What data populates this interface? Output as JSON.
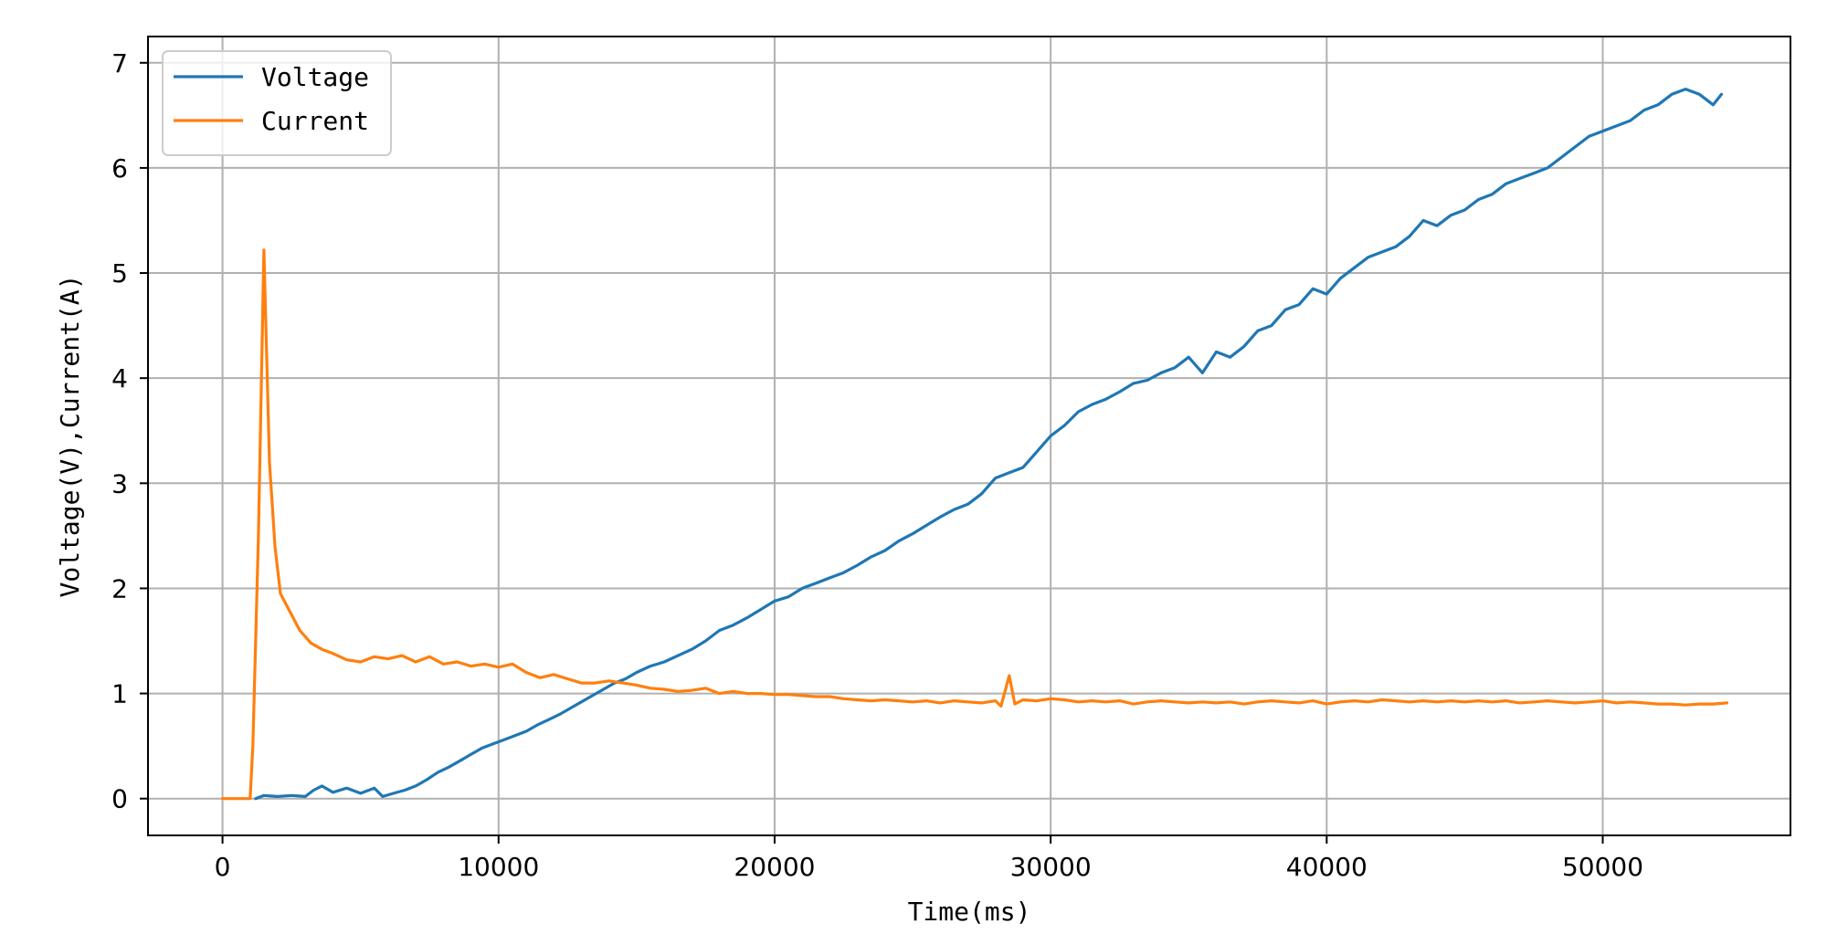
{
  "chart_data": {
    "type": "line",
    "xlabel": "Time(ms)",
    "ylabel": "Voltage(V),Current(A)",
    "xlim": [
      -2700,
      56800
    ],
    "ylim": [
      -0.35,
      7.25
    ],
    "xticks": [
      0,
      10000,
      20000,
      30000,
      40000,
      50000
    ],
    "yticks": [
      0,
      1,
      2,
      3,
      4,
      5,
      6,
      7
    ],
    "grid": true,
    "legend_position": "top-left",
    "series": [
      {
        "name": "Voltage",
        "color": "#1f77b4",
        "points": [
          [
            1200,
            0.0
          ],
          [
            1500,
            0.03
          ],
          [
            2000,
            0.02
          ],
          [
            2500,
            0.03
          ],
          [
            3000,
            0.02
          ],
          [
            3300,
            0.08
          ],
          [
            3600,
            0.12
          ],
          [
            4000,
            0.06
          ],
          [
            4500,
            0.1
          ],
          [
            5000,
            0.05
          ],
          [
            5500,
            0.1
          ],
          [
            5800,
            0.02
          ],
          [
            6200,
            0.05
          ],
          [
            6600,
            0.08
          ],
          [
            7000,
            0.12
          ],
          [
            7400,
            0.18
          ],
          [
            7800,
            0.25
          ],
          [
            8200,
            0.3
          ],
          [
            8600,
            0.36
          ],
          [
            9000,
            0.42
          ],
          [
            9400,
            0.48
          ],
          [
            9800,
            0.52
          ],
          [
            10200,
            0.56
          ],
          [
            10600,
            0.6
          ],
          [
            11000,
            0.64
          ],
          [
            11400,
            0.7
          ],
          [
            11800,
            0.75
          ],
          [
            12200,
            0.8
          ],
          [
            12600,
            0.86
          ],
          [
            13000,
            0.92
          ],
          [
            13400,
            0.98
          ],
          [
            13800,
            1.04
          ],
          [
            14200,
            1.1
          ],
          [
            14600,
            1.14
          ],
          [
            15000,
            1.2
          ],
          [
            15500,
            1.26
          ],
          [
            16000,
            1.3
          ],
          [
            16500,
            1.36
          ],
          [
            17000,
            1.42
          ],
          [
            17500,
            1.5
          ],
          [
            18000,
            1.6
          ],
          [
            18500,
            1.65
          ],
          [
            19000,
            1.72
          ],
          [
            19500,
            1.8
          ],
          [
            20000,
            1.88
          ],
          [
            20500,
            1.92
          ],
          [
            21000,
            2.0
          ],
          [
            21500,
            2.05
          ],
          [
            22000,
            2.1
          ],
          [
            22500,
            2.15
          ],
          [
            23000,
            2.22
          ],
          [
            23500,
            2.3
          ],
          [
            24000,
            2.36
          ],
          [
            24500,
            2.45
          ],
          [
            25000,
            2.52
          ],
          [
            25500,
            2.6
          ],
          [
            26000,
            2.68
          ],
          [
            26500,
            2.75
          ],
          [
            27000,
            2.8
          ],
          [
            27500,
            2.9
          ],
          [
            28000,
            3.05
          ],
          [
            28500,
            3.1
          ],
          [
            29000,
            3.15
          ],
          [
            29500,
            3.3
          ],
          [
            30000,
            3.45
          ],
          [
            30500,
            3.55
          ],
          [
            31000,
            3.68
          ],
          [
            31500,
            3.75
          ],
          [
            32000,
            3.8
          ],
          [
            32500,
            3.87
          ],
          [
            33000,
            3.95
          ],
          [
            33500,
            3.98
          ],
          [
            34000,
            4.05
          ],
          [
            34500,
            4.1
          ],
          [
            35000,
            4.2
          ],
          [
            35500,
            4.05
          ],
          [
            36000,
            4.25
          ],
          [
            36500,
            4.2
          ],
          [
            37000,
            4.3
          ],
          [
            37500,
            4.45
          ],
          [
            38000,
            4.5
          ],
          [
            38500,
            4.65
          ],
          [
            39000,
            4.7
          ],
          [
            39500,
            4.85
          ],
          [
            40000,
            4.8
          ],
          [
            40500,
            4.95
          ],
          [
            41000,
            5.05
          ],
          [
            41500,
            5.15
          ],
          [
            42000,
            5.2
          ],
          [
            42500,
            5.25
          ],
          [
            43000,
            5.35
          ],
          [
            43500,
            5.5
          ],
          [
            44000,
            5.45
          ],
          [
            44500,
            5.55
          ],
          [
            45000,
            5.6
          ],
          [
            45500,
            5.7
          ],
          [
            46000,
            5.75
          ],
          [
            46500,
            5.85
          ],
          [
            47000,
            5.9
          ],
          [
            47500,
            5.95
          ],
          [
            48000,
            6.0
          ],
          [
            48500,
            6.1
          ],
          [
            49000,
            6.2
          ],
          [
            49500,
            6.3
          ],
          [
            50000,
            6.35
          ],
          [
            50500,
            6.4
          ],
          [
            51000,
            6.45
          ],
          [
            51500,
            6.55
          ],
          [
            52000,
            6.6
          ],
          [
            52500,
            6.7
          ],
          [
            53000,
            6.75
          ],
          [
            53500,
            6.7
          ],
          [
            54000,
            6.6
          ],
          [
            54300,
            6.7
          ]
        ]
      },
      {
        "name": "Current",
        "color": "#ff7f0e",
        "points": [
          [
            0,
            0.0
          ],
          [
            1000,
            0.0
          ],
          [
            1100,
            0.5
          ],
          [
            1300,
            2.5
          ],
          [
            1500,
            5.22
          ],
          [
            1700,
            3.2
          ],
          [
            1900,
            2.4
          ],
          [
            2100,
            1.95
          ],
          [
            2400,
            1.8
          ],
          [
            2800,
            1.6
          ],
          [
            3200,
            1.48
          ],
          [
            3600,
            1.42
          ],
          [
            4000,
            1.38
          ],
          [
            4500,
            1.32
          ],
          [
            5000,
            1.3
          ],
          [
            5500,
            1.35
          ],
          [
            6000,
            1.33
          ],
          [
            6500,
            1.36
          ],
          [
            7000,
            1.3
          ],
          [
            7500,
            1.35
          ],
          [
            8000,
            1.28
          ],
          [
            8500,
            1.3
          ],
          [
            9000,
            1.26
          ],
          [
            9500,
            1.28
          ],
          [
            10000,
            1.25
          ],
          [
            10500,
            1.28
          ],
          [
            11000,
            1.2
          ],
          [
            11500,
            1.15
          ],
          [
            12000,
            1.18
          ],
          [
            12500,
            1.14
          ],
          [
            13000,
            1.1
          ],
          [
            13500,
            1.1
          ],
          [
            14000,
            1.12
          ],
          [
            14500,
            1.1
          ],
          [
            15000,
            1.08
          ],
          [
            15500,
            1.05
          ],
          [
            16000,
            1.04
          ],
          [
            16500,
            1.02
          ],
          [
            17000,
            1.03
          ],
          [
            17500,
            1.05
          ],
          [
            18000,
            1.0
          ],
          [
            18500,
            1.02
          ],
          [
            19000,
            1.0
          ],
          [
            19500,
            1.0
          ],
          [
            20000,
            0.99
          ],
          [
            20500,
            0.99
          ],
          [
            21000,
            0.98
          ],
          [
            21500,
            0.97
          ],
          [
            22000,
            0.97
          ],
          [
            22500,
            0.95
          ],
          [
            23000,
            0.94
          ],
          [
            23500,
            0.93
          ],
          [
            24000,
            0.94
          ],
          [
            24500,
            0.93
          ],
          [
            25000,
            0.92
          ],
          [
            25500,
            0.93
          ],
          [
            26000,
            0.91
          ],
          [
            26500,
            0.93
          ],
          [
            27000,
            0.92
          ],
          [
            27500,
            0.91
          ],
          [
            28000,
            0.93
          ],
          [
            28200,
            0.88
          ],
          [
            28500,
            1.17
          ],
          [
            28700,
            0.9
          ],
          [
            29000,
            0.94
          ],
          [
            29500,
            0.93
          ],
          [
            30000,
            0.95
          ],
          [
            30500,
            0.94
          ],
          [
            31000,
            0.92
          ],
          [
            31500,
            0.93
          ],
          [
            32000,
            0.92
          ],
          [
            32500,
            0.93
          ],
          [
            33000,
            0.9
          ],
          [
            33500,
            0.92
          ],
          [
            34000,
            0.93
          ],
          [
            34500,
            0.92
          ],
          [
            35000,
            0.91
          ],
          [
            35500,
            0.92
          ],
          [
            36000,
            0.91
          ],
          [
            36500,
            0.92
          ],
          [
            37000,
            0.9
          ],
          [
            37500,
            0.92
          ],
          [
            38000,
            0.93
          ],
          [
            38500,
            0.92
          ],
          [
            39000,
            0.91
          ],
          [
            39500,
            0.93
          ],
          [
            40000,
            0.9
          ],
          [
            40500,
            0.92
          ],
          [
            41000,
            0.93
          ],
          [
            41500,
            0.92
          ],
          [
            42000,
            0.94
          ],
          [
            42500,
            0.93
          ],
          [
            43000,
            0.92
          ],
          [
            43500,
            0.93
          ],
          [
            44000,
            0.92
          ],
          [
            44500,
            0.93
          ],
          [
            45000,
            0.92
          ],
          [
            45500,
            0.93
          ],
          [
            46000,
            0.92
          ],
          [
            46500,
            0.93
          ],
          [
            47000,
            0.91
          ],
          [
            47500,
            0.92
          ],
          [
            48000,
            0.93
          ],
          [
            48500,
            0.92
          ],
          [
            49000,
            0.91
          ],
          [
            49500,
            0.92
          ],
          [
            50000,
            0.93
          ],
          [
            50500,
            0.91
          ],
          [
            51000,
            0.92
          ],
          [
            51500,
            0.91
          ],
          [
            52000,
            0.9
          ],
          [
            52500,
            0.9
          ],
          [
            53000,
            0.89
          ],
          [
            53500,
            0.9
          ],
          [
            54000,
            0.9
          ],
          [
            54500,
            0.91
          ]
        ]
      }
    ]
  }
}
